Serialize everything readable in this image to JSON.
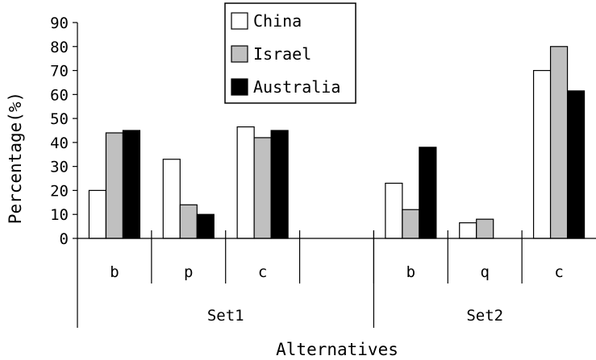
{
  "chart_data": {
    "type": "bar",
    "title": "",
    "ylabel": "Percentage(%)",
    "xlabel": "Alternatives",
    "ylim": [
      0,
      90
    ],
    "yticks": [
      0,
      10,
      20,
      30,
      40,
      50,
      60,
      70,
      80,
      90
    ],
    "grid": false,
    "legend_position": "top-center",
    "groups": [
      {
        "name": "Set1",
        "categories": [
          "b",
          "p",
          "c"
        ]
      },
      {
        "name": "Set2",
        "categories": [
          "b",
          "q",
          "c"
        ]
      }
    ],
    "categories": [
      "b",
      "p",
      "c",
      "",
      "b",
      "q",
      "c"
    ],
    "series": [
      {
        "name": "China",
        "color": "#ffffff",
        "values": [
          20,
          33,
          46.5,
          null,
          23,
          6.5,
          70
        ]
      },
      {
        "name": "Israel",
        "color": "#c0c0c0",
        "values": [
          44,
          14,
          42,
          null,
          12,
          8,
          80
        ]
      },
      {
        "name": "Australia",
        "color": "#000000",
        "values": [
          45,
          10,
          45,
          null,
          38,
          0,
          61.5
        ]
      }
    ]
  }
}
